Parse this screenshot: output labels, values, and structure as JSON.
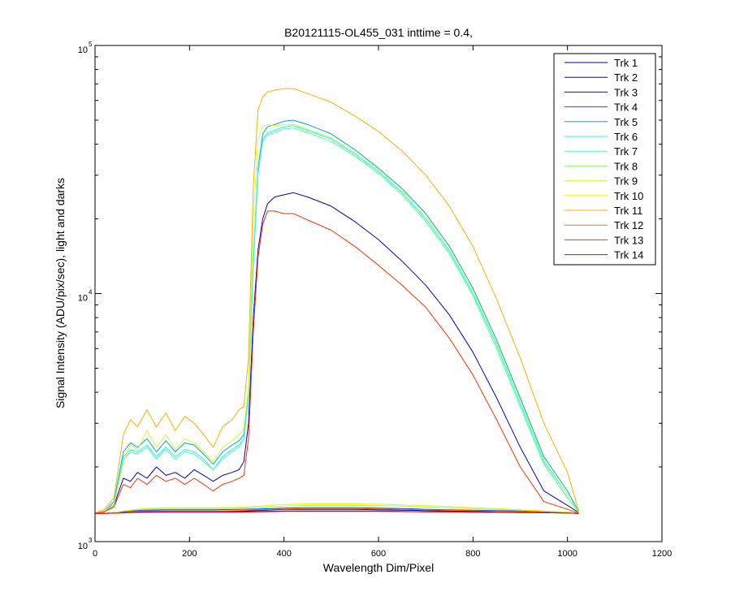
{
  "chart_data": {
    "type": "line",
    "title": "B20121115-OL455_031 inttime = 0.4,",
    "xlabel": "Wavelength Dim/Pixel",
    "ylabel": "Signal Intensity (ADU/pix/sec), light and darks",
    "xlim": [
      0,
      1200
    ],
    "ylim": [
      1000,
      100000
    ],
    "yscale": "log",
    "x_ticks": [
      0,
      200,
      400,
      600,
      800,
      1000,
      1200
    ],
    "x_tick_labels": [
      "0",
      "200",
      "400",
      "600",
      "800",
      "1000",
      "1200"
    ],
    "y_ticks": [
      1000,
      10000,
      100000
    ],
    "y_tick_labels": [
      {
        "base": "10",
        "exp": "3"
      },
      {
        "base": "10",
        "exp": "4"
      },
      {
        "base": "10",
        "exp": "5"
      }
    ],
    "grid": false,
    "legend_position": "top-right",
    "series": [
      {
        "name": "Trk 1",
        "color": "#00008f",
        "x": [
          0,
          20,
          40,
          60,
          80,
          100,
          150,
          200,
          250,
          300,
          340,
          360,
          380,
          400,
          450,
          500,
          550,
          600,
          650,
          700,
          750,
          800,
          850,
          900,
          950,
          1000,
          1024
        ],
        "y": [
          1300,
          1300,
          1310,
          1320,
          1330,
          1330,
          1330,
          1330,
          1330,
          1330,
          1335,
          1340,
          1345,
          1350,
          1350,
          1350,
          1350,
          1345,
          1340,
          1335,
          1330,
          1325,
          1320,
          1315,
          1310,
          1305,
          1300
        ]
      },
      {
        "name": "Trk 2",
        "color": "#0000cf",
        "x": [
          0,
          20,
          40,
          60,
          75,
          90,
          110,
          130,
          150,
          170,
          190,
          210,
          230,
          250,
          270,
          290,
          305,
          315,
          325,
          335,
          345,
          355,
          365,
          380,
          400,
          420,
          450,
          500,
          550,
          600,
          650,
          700,
          750,
          800,
          850,
          900,
          950,
          1000,
          1024
        ],
        "y": [
          1300,
          1320,
          1400,
          1800,
          1750,
          1900,
          1800,
          2000,
          1850,
          1900,
          1800,
          1950,
          1850,
          1750,
          1850,
          1900,
          1950,
          2100,
          3000,
          8000,
          15000,
          20000,
          23000,
          24500,
          25000,
          25500,
          24500,
          22500,
          19500,
          16500,
          13500,
          10800,
          8200,
          5800,
          3800,
          2400,
          1600,
          1400,
          1310
        ]
      },
      {
        "name": "Trk 3",
        "color": "#0010ff",
        "x": [
          0,
          20,
          40,
          60,
          80,
          100,
          150,
          200,
          250,
          300,
          350,
          400,
          450,
          500,
          550,
          600,
          650,
          700,
          750,
          800,
          850,
          900,
          950,
          1000,
          1024
        ],
        "y": [
          1300,
          1300,
          1305,
          1310,
          1315,
          1320,
          1320,
          1320,
          1320,
          1320,
          1325,
          1330,
          1330,
          1330,
          1330,
          1330,
          1325,
          1320,
          1318,
          1315,
          1312,
          1310,
          1308,
          1305,
          1300
        ]
      },
      {
        "name": "Trk 4",
        "color": "#0050ff",
        "x": [
          0,
          20,
          40,
          60,
          80,
          100,
          150,
          200,
          250,
          300,
          350,
          400,
          450,
          500,
          550,
          600,
          650,
          700,
          750,
          800,
          850,
          900,
          950,
          1000,
          1024
        ],
        "y": [
          1300,
          1300,
          1310,
          1320,
          1330,
          1340,
          1345,
          1345,
          1345,
          1350,
          1355,
          1365,
          1370,
          1370,
          1370,
          1365,
          1360,
          1350,
          1345,
          1340,
          1335,
          1330,
          1320,
          1310,
          1300
        ]
      },
      {
        "name": "Trk 5",
        "color": "#00a0ff",
        "x": [
          0,
          20,
          40,
          60,
          75,
          90,
          110,
          130,
          150,
          170,
          190,
          210,
          230,
          250,
          270,
          290,
          305,
          315,
          325,
          335,
          345,
          355,
          365,
          380,
          400,
          420,
          450,
          500,
          550,
          600,
          650,
          700,
          750,
          800,
          850,
          900,
          950,
          1000,
          1024
        ],
        "y": [
          1300,
          1330,
          1450,
          2300,
          2500,
          2400,
          2600,
          2300,
          2550,
          2300,
          2500,
          2450,
          2250,
          2050,
          2300,
          2450,
          2550,
          2700,
          4000,
          14000,
          32000,
          44000,
          47000,
          48000,
          49500,
          50000,
          48000,
          44000,
          38000,
          32000,
          26500,
          21000,
          15500,
          10500,
          6500,
          3800,
          2200,
          1600,
          1320
        ]
      },
      {
        "name": "Trk 6",
        "color": "#10ffef",
        "x": [
          0,
          20,
          40,
          60,
          75,
          90,
          110,
          130,
          150,
          170,
          190,
          210,
          230,
          250,
          270,
          290,
          305,
          315,
          325,
          335,
          345,
          355,
          365,
          380,
          400,
          420,
          450,
          500,
          550,
          600,
          650,
          700,
          750,
          800,
          850,
          900,
          950,
          1000,
          1024
        ],
        "y": [
          1300,
          1330,
          1420,
          2200,
          2350,
          2300,
          2450,
          2200,
          2400,
          2200,
          2350,
          2300,
          2150,
          1950,
          2200,
          2350,
          2450,
          2600,
          3800,
          13000,
          30000,
          42000,
          44500,
          45500,
          47000,
          47500,
          45500,
          42000,
          36500,
          31000,
          25500,
          20000,
          14800,
          10000,
          6200,
          3600,
          2100,
          1550,
          1310
        ]
      },
      {
        "name": "Trk 7",
        "color": "#50ffaf",
        "x": [
          0,
          20,
          40,
          60,
          75,
          90,
          110,
          130,
          150,
          170,
          190,
          210,
          230,
          250,
          270,
          290,
          305,
          315,
          325,
          335,
          345,
          355,
          365,
          380,
          400,
          420,
          450,
          500,
          550,
          600,
          650,
          700,
          750,
          800,
          850,
          900,
          950,
          1000,
          1024
        ],
        "y": [
          1300,
          1330,
          1420,
          2150,
          2300,
          2250,
          2400,
          2150,
          2350,
          2150,
          2300,
          2250,
          2100,
          1950,
          2150,
          2300,
          2400,
          2600,
          3900,
          14000,
          31000,
          41000,
          43500,
          44500,
          46000,
          46500,
          44500,
          41000,
          35800,
          30500,
          25000,
          19500,
          14500,
          9800,
          6000,
          3500,
          2050,
          1500,
          1310
        ]
      },
      {
        "name": "Trk 8",
        "color": "#8fff70",
        "x": [
          0,
          20,
          40,
          60,
          80,
          100,
          150,
          200,
          250,
          300,
          350,
          400,
          450,
          500,
          550,
          600,
          650,
          700,
          750,
          800,
          850,
          900,
          950,
          1000,
          1024
        ],
        "y": [
          1300,
          1300,
          1310,
          1330,
          1340,
          1355,
          1360,
          1360,
          1360,
          1365,
          1375,
          1390,
          1400,
          1400,
          1400,
          1395,
          1390,
          1380,
          1370,
          1360,
          1350,
          1340,
          1330,
          1315,
          1300
        ]
      },
      {
        "name": "Trk 9",
        "color": "#cfff30",
        "x": [
          0,
          20,
          40,
          60,
          75,
          90,
          110,
          130,
          150,
          170,
          190,
          210,
          230,
          250,
          270,
          290,
          305,
          315,
          325,
          335,
          345,
          355,
          365,
          380,
          400,
          420,
          450,
          500,
          550,
          600,
          650,
          700,
          750,
          800,
          850,
          900,
          950,
          1000,
          1024
        ],
        "y": [
          1300,
          1330,
          1400,
          2100,
          2450,
          2350,
          2800,
          2400,
          2700,
          2350,
          2600,
          2500,
          2300,
          2100,
          2400,
          2550,
          2700,
          2850,
          4200,
          20000,
          42000,
          47000,
          48000,
          47500,
          48000,
          48000,
          46000,
          42500,
          37000,
          31500,
          26000,
          20500,
          15000,
          10200,
          6300,
          3700,
          2150,
          1550,
          1310
        ]
      },
      {
        "name": "Trk 10",
        "color": "#ffef00",
        "x": [
          0,
          20,
          40,
          60,
          80,
          100,
          150,
          200,
          250,
          300,
          350,
          400,
          450,
          500,
          550,
          600,
          650,
          700,
          750,
          800,
          850,
          900,
          950,
          1000,
          1024
        ],
        "y": [
          1300,
          1300,
          1310,
          1330,
          1345,
          1360,
          1370,
          1370,
          1370,
          1375,
          1390,
          1410,
          1420,
          1420,
          1420,
          1415,
          1405,
          1395,
          1385,
          1370,
          1360,
          1345,
          1330,
          1315,
          1300
        ]
      },
      {
        "name": "Trk 11",
        "color": "#ffaf00",
        "x": [
          0,
          20,
          40,
          60,
          75,
          90,
          110,
          130,
          150,
          170,
          190,
          210,
          230,
          250,
          270,
          290,
          305,
          315,
          325,
          335,
          345,
          355,
          365,
          380,
          400,
          420,
          450,
          500,
          550,
          600,
          650,
          700,
          750,
          800,
          850,
          900,
          950,
          1000,
          1024
        ],
        "y": [
          1300,
          1350,
          1500,
          2700,
          3100,
          2900,
          3400,
          2900,
          3300,
          2800,
          3200,
          3000,
          2700,
          2400,
          2900,
          3100,
          3400,
          3500,
          5500,
          27000,
          55000,
          62000,
          65000,
          66000,
          67000,
          67000,
          64000,
          59000,
          52000,
          45000,
          37500,
          30000,
          22500,
          15500,
          9500,
          5500,
          3000,
          1900,
          1330
        ]
      },
      {
        "name": "Trk 12",
        "color": "#ff7000",
        "x": [
          0,
          20,
          40,
          60,
          80,
          100,
          150,
          200,
          250,
          300,
          350,
          400,
          450,
          500,
          550,
          600,
          650,
          700,
          750,
          800,
          850,
          900,
          950,
          1000,
          1024
        ],
        "y": [
          1300,
          1300,
          1305,
          1310,
          1320,
          1330,
          1330,
          1330,
          1330,
          1335,
          1345,
          1355,
          1360,
          1360,
          1360,
          1355,
          1350,
          1345,
          1340,
          1335,
          1325,
          1320,
          1315,
          1305,
          1300
        ]
      },
      {
        "name": "Trk 13",
        "color": "#ff3000",
        "x": [
          0,
          20,
          40,
          60,
          75,
          90,
          110,
          130,
          150,
          170,
          190,
          210,
          230,
          250,
          270,
          290,
          305,
          315,
          325,
          335,
          345,
          355,
          365,
          380,
          400,
          420,
          450,
          500,
          550,
          600,
          650,
          700,
          750,
          800,
          850,
          900,
          950,
          1000,
          1024
        ],
        "y": [
          1300,
          1320,
          1380,
          1700,
          1650,
          1800,
          1700,
          1850,
          1750,
          1800,
          1700,
          1800,
          1700,
          1600,
          1700,
          1750,
          1800,
          1850,
          2600,
          7000,
          14000,
          19000,
          21500,
          21500,
          21000,
          21000,
          19800,
          18000,
          15500,
          13000,
          10800,
          8800,
          6600,
          4700,
          3100,
          2000,
          1450,
          1350,
          1300
        ]
      },
      {
        "name": "Trk 14",
        "color": "#ef0000",
        "x": [
          0,
          20,
          40,
          60,
          80,
          100,
          150,
          200,
          250,
          300,
          350,
          400,
          450,
          500,
          550,
          600,
          650,
          700,
          750,
          800,
          850,
          900,
          950,
          1000,
          1024
        ],
        "y": [
          1300,
          1300,
          1302,
          1305,
          1310,
          1312,
          1315,
          1315,
          1315,
          1315,
          1320,
          1325,
          1325,
          1325,
          1325,
          1325,
          1322,
          1320,
          1318,
          1315,
          1312,
          1310,
          1308,
          1304,
          1300
        ]
      }
    ]
  }
}
